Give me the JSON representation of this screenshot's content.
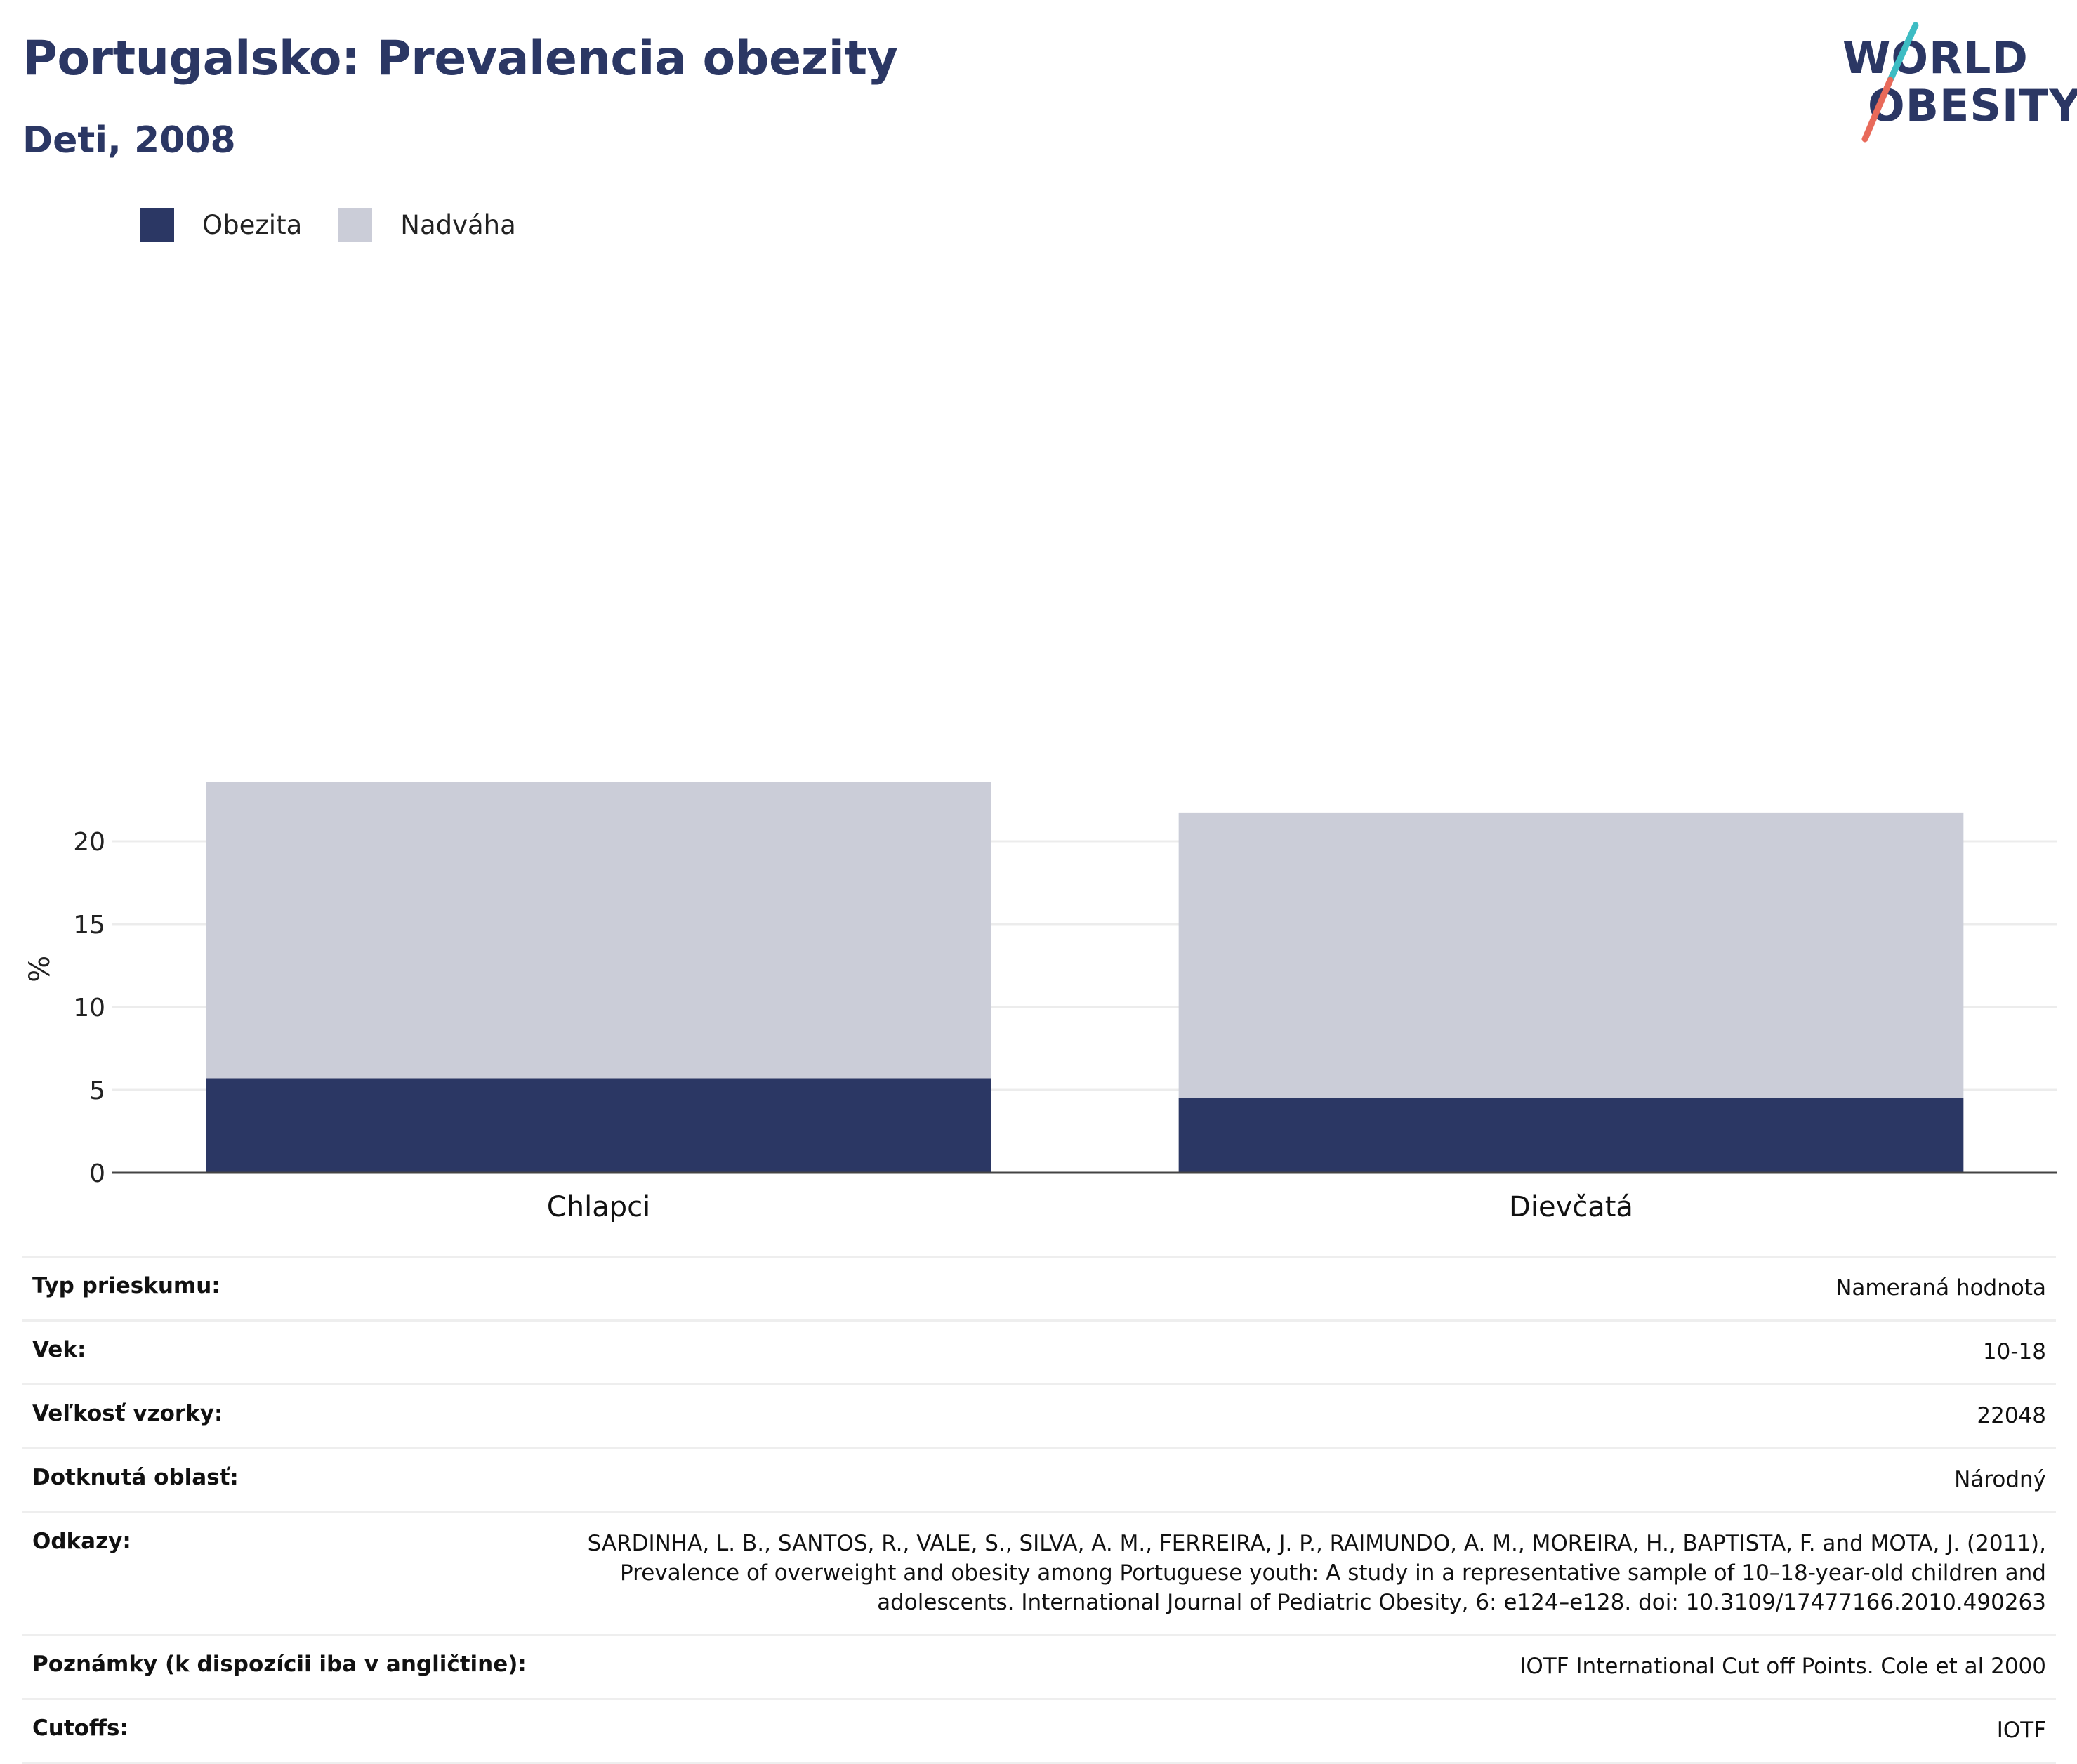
{
  "header": {
    "title": "Portugalsko: Prevalencia obezity",
    "subtitle": "Deti, 2008",
    "logo_line1": "WORLD",
    "logo_line2": "OBESITY"
  },
  "legend": [
    {
      "label": "Obezita",
      "color": "#2b3764"
    },
    {
      "label": "Nadváha",
      "color": "#cbcdd8"
    }
  ],
  "chart_data": {
    "type": "bar",
    "stacked": true,
    "categories": [
      "Chlapci",
      "Dievčatá"
    ],
    "series": [
      {
        "name": "Obezita",
        "color": "#2b3764",
        "values": [
          5.7,
          4.5
        ]
      },
      {
        "name": "Nadváha",
        "color": "#cbcdd8",
        "values": [
          17.9,
          17.2
        ]
      }
    ],
    "ylabel": "%",
    "yticks": [
      0,
      5,
      10,
      15,
      20
    ],
    "ylim": [
      0,
      25
    ],
    "grid": true,
    "legend_position": "top-left"
  },
  "info_rows": [
    {
      "label": "Typ prieskumu:",
      "value": "Nameraná hodnota"
    },
    {
      "label": "Vek:",
      "value": "10-18"
    },
    {
      "label": "Veľkosť vzorky:",
      "value": "22048"
    },
    {
      "label": "Dotknutá oblasť:",
      "value": "Národný"
    },
    {
      "label": "Odkazy:",
      "value": "SARDINHA, L. B., SANTOS, R., VALE, S., SILVA, A. M., FERREIRA, J. P., RAIMUNDO, A. M., MOREIRA, H., BAPTISTA, F. and MOTA, J. (2011), Prevalence of overweight and obesity among Portuguese youth: A study in a representative sample of 10–18-year-old children and adolescents. International Journal of Pediatric Obesity, 6: e124–e128. doi: 10.3109/17477166.2010.490263"
    },
    {
      "label": "Poznámky (k dispozícii iba v angličtine):",
      "value": "IOTF International Cut off Points. Cole et al 2000"
    },
    {
      "label": "Cutoffs:",
      "value": "IOTF"
    }
  ]
}
